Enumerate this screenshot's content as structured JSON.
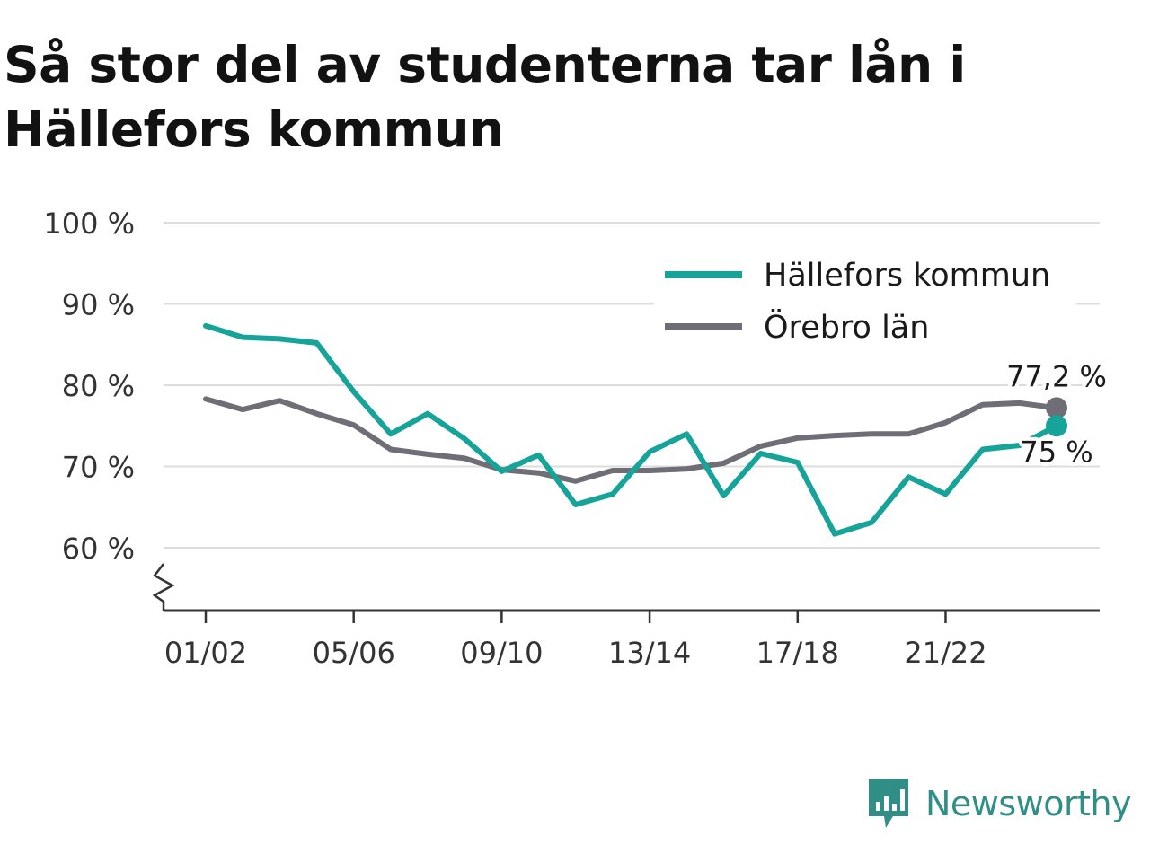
{
  "title": "Så stor del av studenterna tar lån i Hällefors kommun",
  "brand": {
    "name": "Newsworthy",
    "logo_icon": "bar-chart-speech-bubble-icon"
  },
  "colors": {
    "hallefors": "#16a399",
    "orebro": "#6f6e76",
    "grid": "#dddddd",
    "axis": "#333333",
    "brand": "#2f8f86"
  },
  "chart_data": {
    "type": "line",
    "x": [
      "01/02",
      "02/03",
      "03/04",
      "04/05",
      "05/06",
      "06/07",
      "07/08",
      "08/09",
      "09/10",
      "10/11",
      "11/12",
      "12/13",
      "13/14",
      "14/15",
      "15/16",
      "16/17",
      "17/18",
      "18/19",
      "19/20",
      "20/21",
      "21/22",
      "22/23",
      "23/24",
      "24/25"
    ],
    "xticks": [
      "01/02",
      "05/06",
      "09/10",
      "13/14",
      "17/18",
      "21/22"
    ],
    "yticks": [
      60,
      70,
      80,
      90,
      100
    ],
    "ytick_labels": [
      "60 %",
      "70 %",
      "80 %",
      "90 %",
      "100 %"
    ],
    "ylim": [
      53,
      100
    ],
    "axis_break": true,
    "grid": true,
    "legend_position": "top-right",
    "series": [
      {
        "name": "Hällefors kommun",
        "color": "#16a399",
        "values": [
          87.3,
          85.9,
          85.7,
          85.2,
          79.2,
          74.0,
          76.5,
          73.4,
          69.4,
          71.4,
          65.3,
          66.6,
          71.8,
          74.0,
          66.4,
          71.6,
          70.5,
          61.7,
          63.1,
          68.7,
          66.6,
          72.1,
          72.6,
          75.0
        ],
        "end_label": "75 %"
      },
      {
        "name": "Örebro län",
        "color": "#6f6e76",
        "values": [
          78.3,
          77.0,
          78.1,
          76.5,
          75.1,
          72.1,
          71.5,
          71.0,
          69.6,
          69.2,
          68.2,
          69.5,
          69.5,
          69.7,
          70.4,
          72.5,
          73.5,
          73.8,
          74.0,
          74.0,
          75.4,
          77.6,
          77.8,
          77.2
        ],
        "end_label": "77,2 %"
      }
    ]
  }
}
